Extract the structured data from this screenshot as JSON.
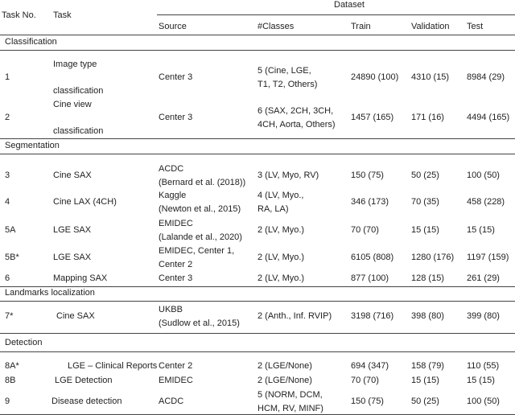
{
  "header": {
    "task_no": "Task No.",
    "task": "Task",
    "dataset": "Dataset",
    "columns": [
      "Source",
      "#Classes",
      "Train",
      "Validation",
      "Test"
    ]
  },
  "sections": [
    {
      "title": "Classification",
      "rows": [
        {
          "task_no": "1",
          "task": [
            "Image type",
            "classification"
          ],
          "source": [
            "Center 3"
          ],
          "classes": [
            "5 (Cine, LGE,",
            "T1, T2, Others)"
          ],
          "train": "24890 (100)",
          "validation": "4310 (15)",
          "test": "8984 (29)"
        },
        {
          "task_no": "2",
          "task": [
            "Cine view",
            "classification"
          ],
          "source": [
            "Center 3"
          ],
          "classes": [
            "6 (SAX, 2CH, 3CH,",
            "4CH, Aorta, Others)"
          ],
          "train": "1457 (165)",
          "validation": "171 (16)",
          "test": "4494 (165)"
        }
      ]
    },
    {
      "title": "Segmentation",
      "rows": [
        {
          "task_no": "3",
          "task": [
            "Cine SAX"
          ],
          "source": [
            "ACDC",
            "(Bernard et al. (2018))"
          ],
          "classes": [
            "3 (LV, Myo, RV)"
          ],
          "train": "150 (75)",
          "validation": "50 (25)",
          "test": "100 (50)"
        },
        {
          "task_no": "4",
          "task": [
            "Cine LAX (4CH)"
          ],
          "source": [
            "Kaggle",
            "(Newton et al., 2015)"
          ],
          "classes": [
            "4 (LV, Myo.,",
            "RA, LA)"
          ],
          "train": "346 (173)",
          "validation": "70 (35)",
          "test": "458 (228)"
        },
        {
          "task_no": "5A",
          "task": [
            "LGE SAX"
          ],
          "source": [
            "EMIDEC",
            "(Lalande et al., 2020)"
          ],
          "classes": [
            "2 (LV, Myo.)"
          ],
          "train": "70 (70)",
          "validation": "15 (15)",
          "test": "15 (15)"
        },
        {
          "task_no": "5B*",
          "task": [
            "LGE SAX"
          ],
          "source": [
            "EMIDEC, Center 1,",
            "Center 2"
          ],
          "classes": [
            "2 (LV, Myo.)"
          ],
          "train": "6105 (808)",
          "validation": "1280 (176)",
          "test": "1197 (159)"
        },
        {
          "task_no": "6",
          "task": [
            "Mapping SAX"
          ],
          "source": [
            "Center 3"
          ],
          "classes": [
            "2 (LV, Myo.)"
          ],
          "train": "877 (100)",
          "validation": "128 (15)",
          "test": "261 (29)"
        }
      ]
    },
    {
      "title": "Landmarks localization",
      "rows": [
        {
          "task_no": "7*",
          "task": [
            "Cine SAX"
          ],
          "source": [
            "UKBB",
            "(Sudlow et al., 2015)"
          ],
          "classes": [
            "2 (Anth., Inf. RVIP)"
          ],
          "train": "3198 (716)",
          "validation": "398 (80)",
          "test": "399 (80)"
        }
      ]
    },
    {
      "title": "Detection",
      "rows": [
        {
          "task_no": "8A*",
          "task": [
            "LGE – Clinical Reports"
          ],
          "source": [
            "Center 2"
          ],
          "classes": [
            "2 (LGE/None)"
          ],
          "train": "694 (347)",
          "validation": "158 (79)",
          "test": "110 (55)"
        },
        {
          "task_no": "8B",
          "task": [
            "LGE Detection"
          ],
          "source": [
            "EMIDEC"
          ],
          "classes": [
            "2 (LGE/None)"
          ],
          "train": "70 (70)",
          "validation": "15 (15)",
          "test": "15 (15)"
        },
        {
          "task_no": "9",
          "task": [
            "Disease detection"
          ],
          "source": [
            "ACDC"
          ],
          "classes": [
            "5 (NORM, DCM,",
            "HCM, RV, MINF)"
          ],
          "train": "150 (75)",
          "validation": "50 (25)",
          "test": "100 (50)"
        }
      ]
    }
  ]
}
